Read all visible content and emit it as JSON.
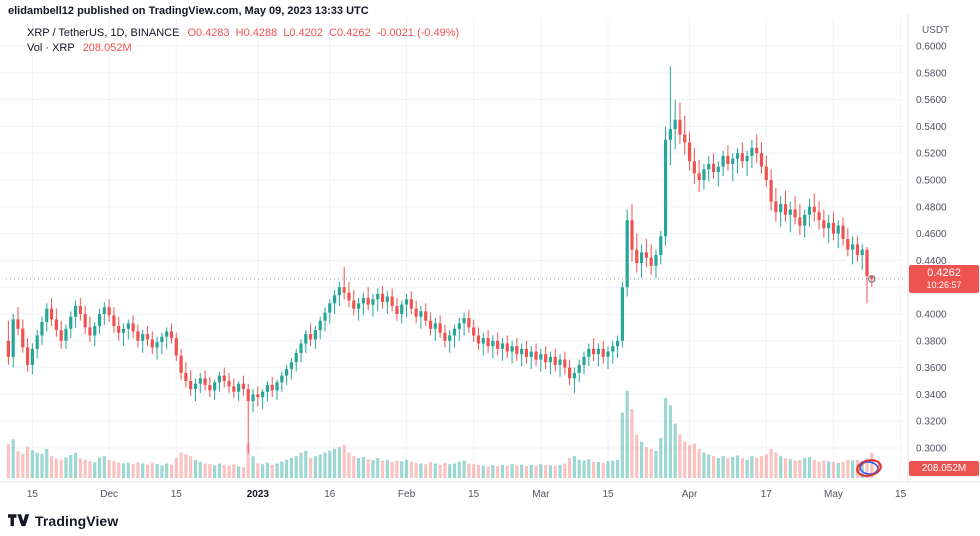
{
  "attribution": "elidambell12 published on TradingView.com, May 09, 2023 13:33 UTC",
  "legend": {
    "symbol": "XRP / TetherUS, 1D, BINANCE",
    "o": "O0.4283",
    "h": "H0.4288",
    "l": "L0.4202",
    "c": "C0.4262",
    "chg": "-0.0021 (-0.49%)",
    "vol_label": "Vol · XRP",
    "vol_value": "208.052M"
  },
  "price_scale": {
    "currency": "USDT",
    "ticks": [
      "0.6000",
      "0.5800",
      "0.5600",
      "0.5400",
      "0.5200",
      "0.5000",
      "0.4800",
      "0.4600",
      "0.4400",
      "0.4200",
      "0.4000",
      "0.3800",
      "0.3600",
      "0.3400",
      "0.3200",
      "0.3000"
    ],
    "last_price": "0.4262",
    "countdown": "10:26:57",
    "volume_badge": "208.052M"
  },
  "footer": {
    "brand": "TradingView"
  },
  "colors": {
    "up": "#26a69a",
    "down": "#ef5350",
    "up_vol": "rgba(38,166,154,0.45)",
    "down_vol": "rgba(239,83,80,0.35)",
    "grid": "#f0f3fa",
    "axis": "#e0e3eb",
    "scale_text": "#50535e",
    "bold_text": "#131722",
    "last_price_line": "#9598a1",
    "badge_bg": "#ef5350",
    "stamp_red": "#e0342f",
    "stamp_blue": "#2962ff"
  },
  "chart_data": {
    "type": "candlestick",
    "symbol": "XRP/USDT",
    "exchange": "BINANCE",
    "interval": "1D",
    "ylim": [
      0.29,
      0.615
    ],
    "last_close": 0.4262,
    "x_labels": [
      {
        "text": "15",
        "slot": 5,
        "bold": false
      },
      {
        "text": "Dec",
        "slot": 21,
        "bold": false
      },
      {
        "text": "15",
        "slot": 35,
        "bold": false
      },
      {
        "text": "2023",
        "slot": 52,
        "bold": true
      },
      {
        "text": "16",
        "slot": 67,
        "bold": false
      },
      {
        "text": "Feb",
        "slot": 83,
        "bold": false
      },
      {
        "text": "15",
        "slot": 97,
        "bold": false
      },
      {
        "text": "Mar",
        "slot": 111,
        "bold": false
      },
      {
        "text": "15",
        "slot": 125,
        "bold": false
      },
      {
        "text": "Apr",
        "slot": 142,
        "bold": false
      },
      {
        "text": "17",
        "slot": 158,
        "bold": false
      },
      {
        "text": "May",
        "slot": 172,
        "bold": false
      },
      {
        "text": "15",
        "slot": 186,
        "bold": false
      }
    ],
    "candles": [
      [
        0.38,
        0.395,
        0.362,
        0.368,
        280
      ],
      [
        0.368,
        0.4,
        0.36,
        0.396,
        320
      ],
      [
        0.396,
        0.405,
        0.384,
        0.389,
        220
      ],
      [
        0.389,
        0.396,
        0.371,
        0.375,
        200
      ],
      [
        0.375,
        0.382,
        0.357,
        0.362,
        260
      ],
      [
        0.362,
        0.378,
        0.355,
        0.374,
        230
      ],
      [
        0.374,
        0.388,
        0.367,
        0.384,
        210
      ],
      [
        0.384,
        0.398,
        0.377,
        0.394,
        200
      ],
      [
        0.394,
        0.408,
        0.387,
        0.404,
        240
      ],
      [
        0.404,
        0.412,
        0.391,
        0.396,
        180
      ],
      [
        0.396,
        0.404,
        0.383,
        0.388,
        160
      ],
      [
        0.388,
        0.395,
        0.374,
        0.38,
        150
      ],
      [
        0.38,
        0.392,
        0.374,
        0.389,
        170
      ],
      [
        0.389,
        0.402,
        0.382,
        0.398,
        190
      ],
      [
        0.398,
        0.41,
        0.39,
        0.406,
        210
      ],
      [
        0.406,
        0.412,
        0.395,
        0.4,
        160
      ],
      [
        0.4,
        0.406,
        0.385,
        0.39,
        150
      ],
      [
        0.39,
        0.398,
        0.379,
        0.384,
        140
      ],
      [
        0.384,
        0.394,
        0.376,
        0.391,
        130
      ],
      [
        0.391,
        0.404,
        0.385,
        0.4,
        170
      ],
      [
        0.4,
        0.409,
        0.392,
        0.405,
        180
      ],
      [
        0.405,
        0.411,
        0.394,
        0.399,
        150
      ],
      [
        0.399,
        0.405,
        0.386,
        0.391,
        140
      ],
      [
        0.391,
        0.398,
        0.38,
        0.386,
        130
      ],
      [
        0.386,
        0.393,
        0.376,
        0.389,
        120
      ],
      [
        0.389,
        0.396,
        0.381,
        0.393,
        125
      ],
      [
        0.393,
        0.399,
        0.382,
        0.387,
        115
      ],
      [
        0.387,
        0.392,
        0.375,
        0.38,
        130
      ],
      [
        0.38,
        0.388,
        0.371,
        0.385,
        120
      ],
      [
        0.385,
        0.391,
        0.376,
        0.381,
        110
      ],
      [
        0.381,
        0.387,
        0.37,
        0.375,
        125
      ],
      [
        0.375,
        0.383,
        0.366,
        0.379,
        115
      ],
      [
        0.379,
        0.386,
        0.37,
        0.383,
        105
      ],
      [
        0.383,
        0.39,
        0.374,
        0.387,
        120
      ],
      [
        0.387,
        0.393,
        0.378,
        0.382,
        110
      ],
      [
        0.382,
        0.386,
        0.365,
        0.369,
        165
      ],
      [
        0.369,
        0.374,
        0.351,
        0.356,
        210
      ],
      [
        0.356,
        0.364,
        0.345,
        0.35,
        195
      ],
      [
        0.35,
        0.358,
        0.339,
        0.344,
        180
      ],
      [
        0.344,
        0.352,
        0.335,
        0.348,
        150
      ],
      [
        0.348,
        0.356,
        0.341,
        0.352,
        135
      ],
      [
        0.352,
        0.358,
        0.343,
        0.347,
        120
      ],
      [
        0.347,
        0.353,
        0.338,
        0.343,
        115
      ],
      [
        0.343,
        0.351,
        0.336,
        0.349,
        105
      ],
      [
        0.349,
        0.357,
        0.342,
        0.354,
        120
      ],
      [
        0.354,
        0.36,
        0.345,
        0.35,
        108
      ],
      [
        0.35,
        0.356,
        0.341,
        0.346,
        102
      ],
      [
        0.346,
        0.352,
        0.337,
        0.342,
        114
      ],
      [
        0.342,
        0.35,
        0.335,
        0.348,
        96
      ],
      [
        0.348,
        0.354,
        0.339,
        0.344,
        90
      ],
      [
        0.344,
        0.348,
        0.296,
        0.335,
        285
      ],
      [
        0.335,
        0.344,
        0.327,
        0.34,
        180
      ],
      [
        0.34,
        0.346,
        0.331,
        0.338,
        120
      ],
      [
        0.338,
        0.344,
        0.329,
        0.342,
        114
      ],
      [
        0.342,
        0.35,
        0.335,
        0.347,
        126
      ],
      [
        0.347,
        0.353,
        0.338,
        0.343,
        108
      ],
      [
        0.343,
        0.351,
        0.336,
        0.349,
        120
      ],
      [
        0.349,
        0.357,
        0.342,
        0.354,
        135
      ],
      [
        0.354,
        0.362,
        0.347,
        0.359,
        150
      ],
      [
        0.359,
        0.367,
        0.351,
        0.364,
        165
      ],
      [
        0.364,
        0.374,
        0.357,
        0.371,
        180
      ],
      [
        0.371,
        0.381,
        0.364,
        0.378,
        210
      ],
      [
        0.378,
        0.388,
        0.371,
        0.385,
        225
      ],
      [
        0.385,
        0.393,
        0.376,
        0.381,
        165
      ],
      [
        0.381,
        0.391,
        0.374,
        0.388,
        180
      ],
      [
        0.388,
        0.398,
        0.381,
        0.395,
        195
      ],
      [
        0.395,
        0.405,
        0.387,
        0.401,
        210
      ],
      [
        0.401,
        0.411,
        0.393,
        0.408,
        225
      ],
      [
        0.408,
        0.418,
        0.4,
        0.414,
        240
      ],
      [
        0.414,
        0.424,
        0.406,
        0.42,
        255
      ],
      [
        0.42,
        0.435,
        0.411,
        0.416,
        270
      ],
      [
        0.416,
        0.424,
        0.405,
        0.41,
        210
      ],
      [
        0.41,
        0.418,
        0.399,
        0.404,
        180
      ],
      [
        0.404,
        0.412,
        0.395,
        0.408,
        165
      ],
      [
        0.408,
        0.416,
        0.399,
        0.412,
        174
      ],
      [
        0.412,
        0.42,
        0.403,
        0.407,
        156
      ],
      [
        0.407,
        0.415,
        0.398,
        0.411,
        150
      ],
      [
        0.411,
        0.419,
        0.402,
        0.415,
        165
      ],
      [
        0.415,
        0.421,
        0.404,
        0.409,
        144
      ],
      [
        0.409,
        0.417,
        0.4,
        0.413,
        150
      ],
      [
        0.413,
        0.419,
        0.402,
        0.406,
        135
      ],
      [
        0.406,
        0.412,
        0.395,
        0.4,
        144
      ],
      [
        0.4,
        0.41,
        0.393,
        0.407,
        138
      ],
      [
        0.407,
        0.415,
        0.398,
        0.411,
        150
      ],
      [
        0.411,
        0.417,
        0.4,
        0.404,
        135
      ],
      [
        0.404,
        0.41,
        0.393,
        0.398,
        126
      ],
      [
        0.398,
        0.406,
        0.389,
        0.402,
        120
      ],
      [
        0.402,
        0.408,
        0.391,
        0.395,
        114
      ],
      [
        0.395,
        0.401,
        0.384,
        0.389,
        132
      ],
      [
        0.389,
        0.397,
        0.38,
        0.393,
        120
      ],
      [
        0.393,
        0.399,
        0.382,
        0.386,
        108
      ],
      [
        0.386,
        0.392,
        0.375,
        0.38,
        126
      ],
      [
        0.38,
        0.388,
        0.371,
        0.384,
        114
      ],
      [
        0.384,
        0.392,
        0.375,
        0.389,
        120
      ],
      [
        0.389,
        0.397,
        0.38,
        0.393,
        135
      ],
      [
        0.393,
        0.401,
        0.384,
        0.397,
        144
      ],
      [
        0.397,
        0.403,
        0.386,
        0.39,
        120
      ],
      [
        0.39,
        0.396,
        0.379,
        0.384,
        114
      ],
      [
        0.384,
        0.39,
        0.373,
        0.378,
        108
      ],
      [
        0.378,
        0.386,
        0.369,
        0.382,
        102
      ],
      [
        0.382,
        0.388,
        0.371,
        0.376,
        96
      ],
      [
        0.376,
        0.384,
        0.367,
        0.38,
        105
      ],
      [
        0.38,
        0.386,
        0.369,
        0.374,
        99
      ],
      [
        0.374,
        0.382,
        0.365,
        0.378,
        108
      ],
      [
        0.378,
        0.384,
        0.367,
        0.372,
        102
      ],
      [
        0.372,
        0.38,
        0.363,
        0.376,
        114
      ],
      [
        0.376,
        0.382,
        0.365,
        0.37,
        105
      ],
      [
        0.37,
        0.378,
        0.361,
        0.374,
        111
      ],
      [
        0.374,
        0.38,
        0.363,
        0.368,
        99
      ],
      [
        0.368,
        0.376,
        0.359,
        0.372,
        108
      ],
      [
        0.372,
        0.378,
        0.361,
        0.366,
        102
      ],
      [
        0.366,
        0.374,
        0.357,
        0.37,
        114
      ],
      [
        0.37,
        0.376,
        0.359,
        0.364,
        108
      ],
      [
        0.364,
        0.372,
        0.355,
        0.368,
        105
      ],
      [
        0.368,
        0.374,
        0.357,
        0.362,
        102
      ],
      [
        0.362,
        0.37,
        0.353,
        0.366,
        108
      ],
      [
        0.366,
        0.372,
        0.355,
        0.36,
        120
      ],
      [
        0.36,
        0.366,
        0.347,
        0.352,
        165
      ],
      [
        0.352,
        0.36,
        0.341,
        0.356,
        180
      ],
      [
        0.356,
        0.366,
        0.349,
        0.362,
        150
      ],
      [
        0.362,
        0.372,
        0.355,
        0.368,
        144
      ],
      [
        0.368,
        0.378,
        0.361,
        0.374,
        156
      ],
      [
        0.374,
        0.382,
        0.365,
        0.37,
        135
      ],
      [
        0.37,
        0.378,
        0.361,
        0.374,
        132
      ],
      [
        0.374,
        0.38,
        0.363,
        0.368,
        126
      ],
      [
        0.368,
        0.376,
        0.359,
        0.372,
        138
      ],
      [
        0.372,
        0.38,
        0.363,
        0.376,
        144
      ],
      [
        0.376,
        0.384,
        0.367,
        0.38,
        150
      ],
      [
        0.38,
        0.424,
        0.375,
        0.42,
        540
      ],
      [
        0.42,
        0.478,
        0.413,
        0.47,
        720
      ],
      [
        0.47,
        0.482,
        0.439,
        0.448,
        570
      ],
      [
        0.448,
        0.46,
        0.431,
        0.438,
        360
      ],
      [
        0.438,
        0.452,
        0.427,
        0.446,
        300
      ],
      [
        0.446,
        0.456,
        0.435,
        0.442,
        255
      ],
      [
        0.442,
        0.452,
        0.429,
        0.436,
        240
      ],
      [
        0.436,
        0.448,
        0.427,
        0.444,
        225
      ],
      [
        0.444,
        0.462,
        0.437,
        0.458,
        330
      ],
      [
        0.458,
        0.54,
        0.451,
        0.53,
        660
      ],
      [
        0.53,
        0.585,
        0.511,
        0.538,
        600
      ],
      [
        0.538,
        0.56,
        0.523,
        0.545,
        450
      ],
      [
        0.545,
        0.558,
        0.527,
        0.534,
        360
      ],
      [
        0.534,
        0.548,
        0.519,
        0.528,
        300
      ],
      [
        0.528,
        0.536,
        0.507,
        0.514,
        270
      ],
      [
        0.514,
        0.524,
        0.497,
        0.505,
        285
      ],
      [
        0.505,
        0.515,
        0.491,
        0.5,
        240
      ],
      [
        0.5,
        0.512,
        0.493,
        0.508,
        210
      ],
      [
        0.508,
        0.518,
        0.499,
        0.512,
        195
      ],
      [
        0.512,
        0.52,
        0.501,
        0.506,
        180
      ],
      [
        0.506,
        0.514,
        0.495,
        0.51,
        165
      ],
      [
        0.51,
        0.522,
        0.503,
        0.518,
        180
      ],
      [
        0.518,
        0.526,
        0.507,
        0.512,
        165
      ],
      [
        0.512,
        0.52,
        0.499,
        0.516,
        174
      ],
      [
        0.516,
        0.524,
        0.505,
        0.52,
        186
      ],
      [
        0.52,
        0.528,
        0.509,
        0.514,
        165
      ],
      [
        0.514,
        0.522,
        0.503,
        0.518,
        150
      ],
      [
        0.518,
        0.53,
        0.509,
        0.524,
        180
      ],
      [
        0.524,
        0.534,
        0.513,
        0.52,
        165
      ],
      [
        0.52,
        0.528,
        0.505,
        0.51,
        180
      ],
      [
        0.51,
        0.518,
        0.495,
        0.5,
        195
      ],
      [
        0.5,
        0.508,
        0.477,
        0.484,
        240
      ],
      [
        0.484,
        0.494,
        0.469,
        0.476,
        210
      ],
      [
        0.476,
        0.488,
        0.465,
        0.482,
        180
      ],
      [
        0.482,
        0.492,
        0.469,
        0.474,
        165
      ],
      [
        0.474,
        0.484,
        0.461,
        0.478,
        156
      ],
      [
        0.478,
        0.488,
        0.467,
        0.472,
        144
      ],
      [
        0.472,
        0.482,
        0.459,
        0.466,
        150
      ],
      [
        0.466,
        0.478,
        0.457,
        0.474,
        165
      ],
      [
        0.474,
        0.486,
        0.465,
        0.48,
        174
      ],
      [
        0.48,
        0.49,
        0.469,
        0.476,
        150
      ],
      [
        0.476,
        0.484,
        0.463,
        0.47,
        135
      ],
      [
        0.47,
        0.478,
        0.457,
        0.464,
        144
      ],
      [
        0.464,
        0.474,
        0.453,
        0.468,
        138
      ],
      [
        0.468,
        0.476,
        0.455,
        0.46,
        132
      ],
      [
        0.46,
        0.47,
        0.449,
        0.466,
        126
      ],
      [
        0.466,
        0.472,
        0.451,
        0.456,
        135
      ],
      [
        0.456,
        0.464,
        0.443,
        0.448,
        150
      ],
      [
        0.448,
        0.458,
        0.437,
        0.452,
        144
      ],
      [
        0.452,
        0.458,
        0.439,
        0.444,
        150
      ],
      [
        0.444,
        0.452,
        0.433,
        0.448,
        138
      ],
      [
        0.448,
        0.45,
        0.408,
        0.4283,
        162
      ],
      [
        0.4283,
        0.4288,
        0.4202,
        0.4262,
        208.052
      ]
    ]
  }
}
